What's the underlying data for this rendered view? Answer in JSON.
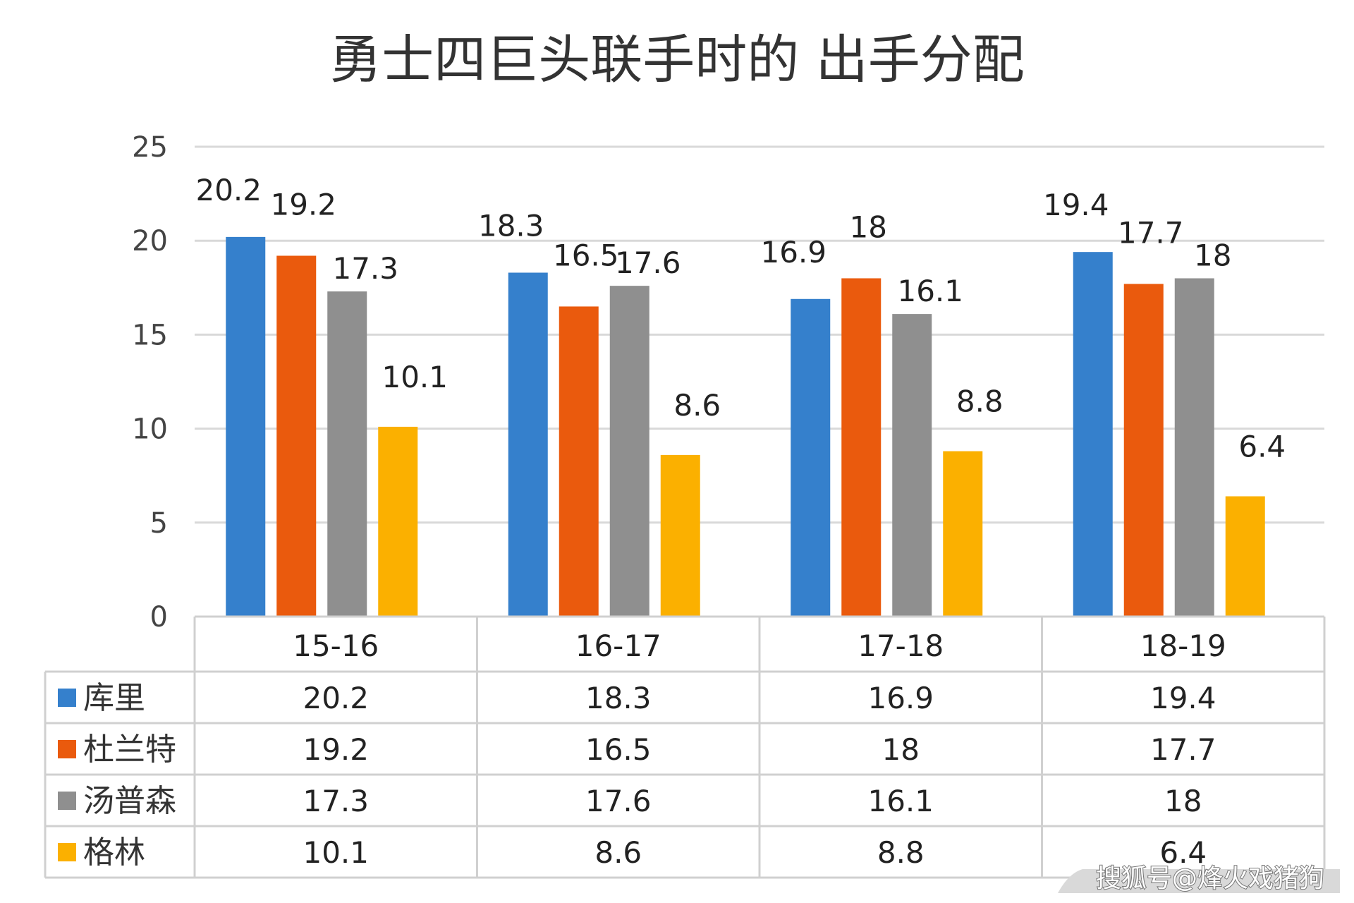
{
  "chart_data": {
    "type": "bar",
    "title": "勇士四巨头联手时的 出手分配",
    "categories": [
      "15-16",
      "16-17",
      "17-18",
      "18-19"
    ],
    "series": [
      {
        "name": "库里",
        "color": "#3580cc",
        "values": [
          20.2,
          18.3,
          16.9,
          19.4
        ]
      },
      {
        "name": "杜兰特",
        "color": "#ea5a0d",
        "values": [
          19.2,
          16.5,
          18,
          17.7
        ]
      },
      {
        "name": "汤普森",
        "color": "#8f8f8f",
        "values": [
          17.3,
          17.6,
          16.1,
          18
        ]
      },
      {
        "name": "格林",
        "color": "#fbb000",
        "values": [
          10.1,
          8.6,
          8.8,
          6.4
        ]
      }
    ],
    "ylim": [
      0,
      25
    ],
    "yticks": [
      0,
      5,
      10,
      15,
      20,
      25
    ],
    "grid": true,
    "legend": "data-table"
  },
  "watermark": "搜狐号@烽火戏猪狗"
}
